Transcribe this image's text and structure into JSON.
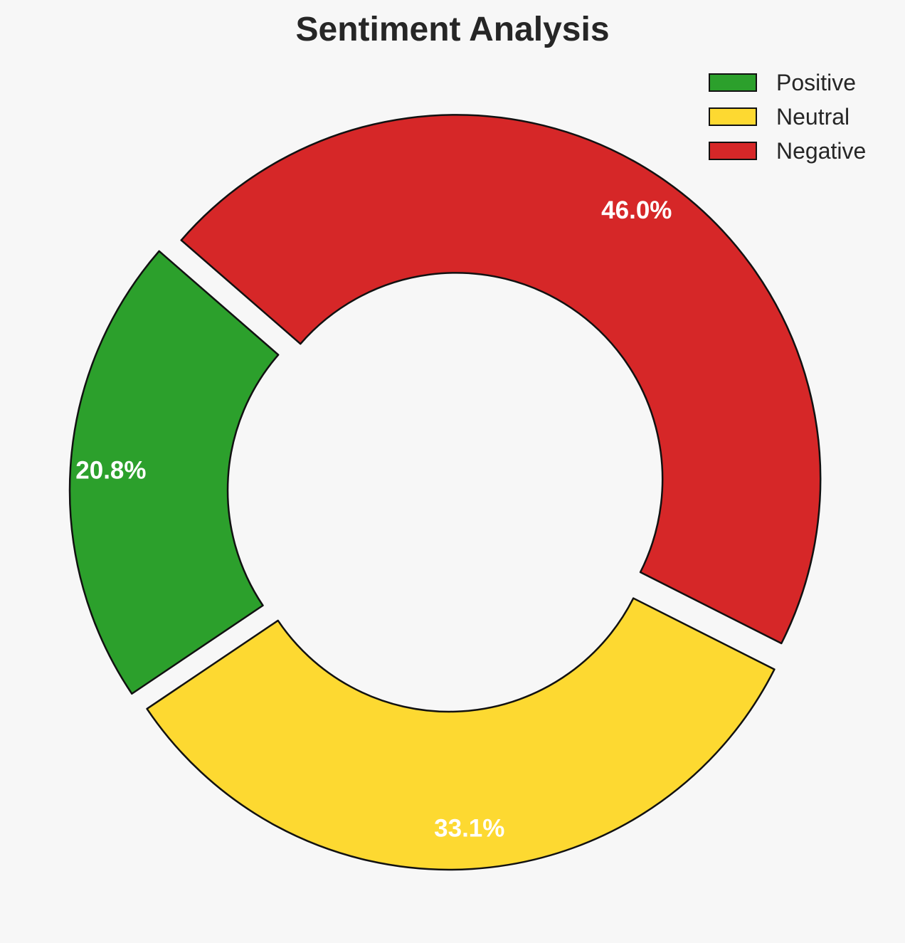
{
  "chart_data": {
    "type": "pie",
    "title": "Sentiment Analysis",
    "donut": true,
    "legend_position": "top-right",
    "slices": [
      {
        "label": "Positive",
        "value": 20.8,
        "display": "20.8%",
        "color": "#2ca02c"
      },
      {
        "label": "Neutral",
        "value": 33.1,
        "display": "33.1%",
        "color": "#fdd931"
      },
      {
        "label": "Negative",
        "value": 46.0,
        "display": "46.0%",
        "color": "#d62728"
      }
    ]
  }
}
